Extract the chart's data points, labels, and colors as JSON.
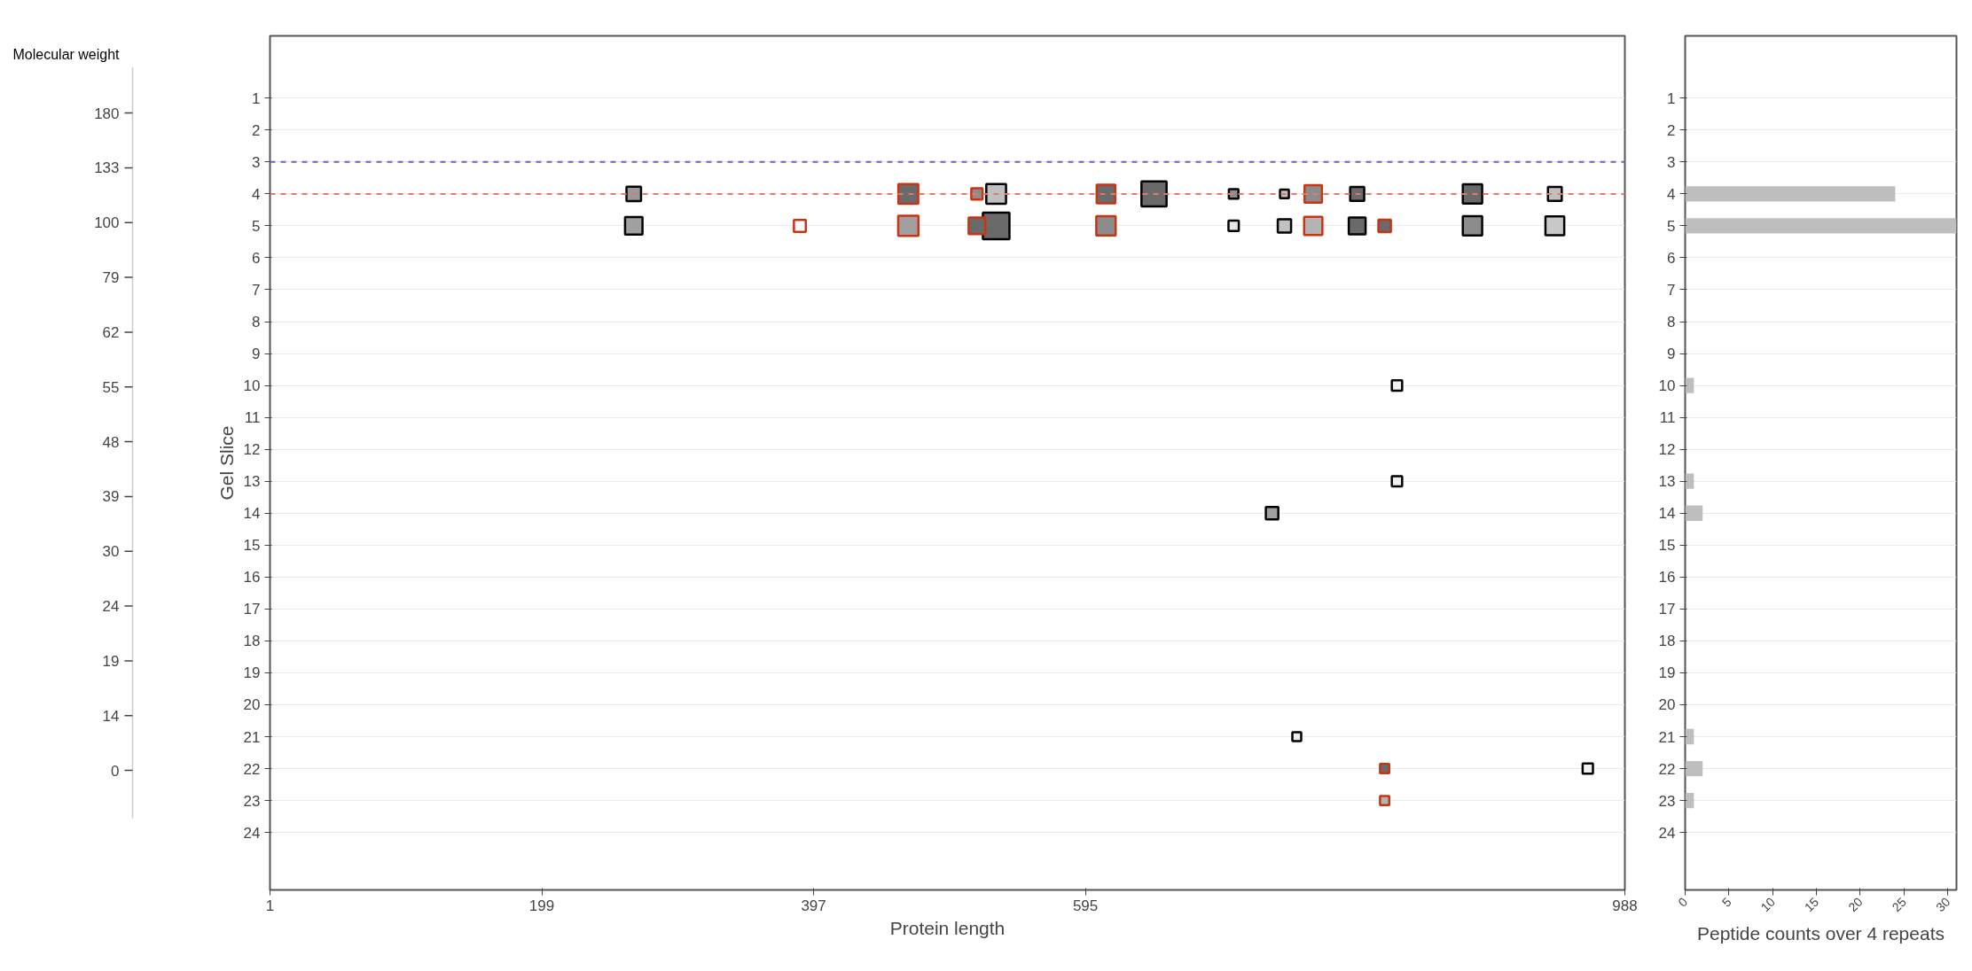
{
  "chart_data": [
    {
      "type": "other",
      "title": "Molecular weight",
      "annotations": [
        "180",
        "133",
        "100",
        "79",
        "62",
        "55",
        "48",
        "39",
        "30",
        "24",
        "19",
        "14",
        "0"
      ]
    },
    {
      "type": "bubble",
      "marker": "square",
      "xlabel": "Protein length",
      "ylabel": "Gel Slice",
      "xlim": [
        1,
        988
      ],
      "xticks": [
        1,
        199,
        397,
        595,
        988
      ],
      "ylim": [
        25.8,
        -0.95
      ],
      "yticks": [
        1,
        2,
        3,
        4,
        5,
        6,
        7,
        8,
        9,
        10,
        11,
        12,
        13,
        14,
        15,
        16,
        17,
        18,
        19,
        20,
        21,
        22,
        23,
        24
      ],
      "grid": "y",
      "ref_lines": [
        {
          "axis": "y",
          "value": 3,
          "color": "#6a5fd0",
          "line_style": "dashed"
        },
        {
          "axis": "y",
          "value": 4,
          "color": "#e07a6a",
          "line_style": "dashed"
        }
      ],
      "series": [
        {
          "color": "#000000",
          "x": [
            266,
            530,
            645,
            703,
            740,
            793,
            877,
            937,
            266,
            530,
            703,
            740,
            793,
            877,
            937,
            822,
            822,
            731,
            749,
            961
          ],
          "values": [
            4,
            4,
            4,
            4,
            4,
            4,
            4,
            4,
            5,
            5,
            5,
            5,
            5,
            5,
            5,
            10,
            13,
            14,
            21,
            22
          ],
          "sizes": [
            0.3,
            0.55,
            0.89,
            0.13,
            0.11,
            0.28,
            0.53,
            0.27,
            0.43,
            1,
            0.15,
            0.25,
            0.4,
            0.53,
            0.5,
            0.15,
            0.15,
            0.22,
            0.11,
            0.15
          ],
          "colors": [
            "#9a9a9a",
            "#c0c0c0",
            "#6a6a6a",
            "#8c8c8c",
            "#c0c0c0",
            "#6a6a6a",
            "#6a6a6a",
            "#c0c0c0",
            "#a0a0a0",
            "#6a6a6a",
            "#e6e6e6",
            "#c0c0c0",
            "#6a6a6a",
            "#8c8c8c",
            "#c8c8c8",
            "#f0f0f0",
            "#f0f0f0",
            "#a0a0a0",
            "#f0f0f0",
            "#f0f0f0"
          ]
        },
        {
          "color": "#cc3311",
          "x": [
            466,
            516,
            610,
            761,
            387,
            466,
            516,
            610,
            761,
            813,
            813,
            813
          ],
          "values": [
            4,
            4,
            4,
            4,
            5,
            5,
            5,
            5,
            5,
            5,
            22,
            23
          ],
          "sizes": [
            0.56,
            0.18,
            0.49,
            0.43,
            0.2,
            0.58,
            0.39,
            0.53,
            0.47,
            0.22,
            0.12,
            0.12
          ],
          "colors": [
            "#6a6a6a",
            "#8c8c8c",
            "#6a6a6a",
            "#8c8c8c",
            "#ffffff",
            "#a0a0a0",
            "#6a6a6a",
            "#8c8c8c",
            "#b4b4b4",
            "#6a6a6a",
            "#6a6a6a",
            "#b4b4b4"
          ]
        }
      ]
    },
    {
      "type": "bar",
      "orientation": "horizontal",
      "xlabel": "Peptide counts over 4 repeats",
      "color": "#bebebe",
      "categories": [
        "1",
        "2",
        "3",
        "4",
        "5",
        "6",
        "7",
        "8",
        "9",
        "10",
        "11",
        "12",
        "13",
        "14",
        "15",
        "16",
        "17",
        "18",
        "19",
        "20",
        "21",
        "22",
        "23",
        "24"
      ],
      "values": [
        0,
        0,
        0,
        24,
        31,
        0,
        0,
        0,
        0,
        1,
        0,
        0,
        1,
        2,
        0,
        0,
        0,
        0,
        0,
        0,
        1,
        2,
        1,
        0
      ],
      "xlim": [
        0,
        31
      ],
      "xticks": [
        0,
        5,
        10,
        15,
        20,
        25,
        30
      ],
      "grid": "y"
    }
  ]
}
